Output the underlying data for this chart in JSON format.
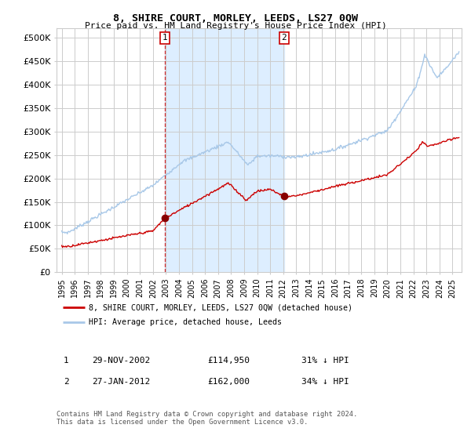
{
  "title": "8, SHIRE COURT, MORLEY, LEEDS, LS27 0QW",
  "subtitle": "Price paid vs. HM Land Registry's House Price Index (HPI)",
  "legend_entry1": "8, SHIRE COURT, MORLEY, LEEDS, LS27 0QW (detached house)",
  "legend_entry2": "HPI: Average price, detached house, Leeds",
  "table_rows": [
    {
      "num": "1",
      "date": "29-NOV-2002",
      "price": "£114,950",
      "hpi": "31% ↓ HPI"
    },
    {
      "num": "2",
      "date": "27-JAN-2012",
      "price": "£162,000",
      "hpi": "34% ↓ HPI"
    }
  ],
  "footnote": "Contains HM Land Registry data © Crown copyright and database right 2024.\nThis data is licensed under the Open Government Licence v3.0.",
  "sale1_year": 2002.91,
  "sale2_year": 2012.07,
  "sale1_price": 114950,
  "sale2_price": 162000,
  "hpi_color": "#a8c8e8",
  "property_color": "#cc0000",
  "dashed_line_color": "#cc0000",
  "shade_color": "#ddeeff",
  "background_color": "#ffffff",
  "grid_color": "#cccccc",
  "ylim": [
    0,
    520000
  ],
  "yticks": [
    0,
    50000,
    100000,
    150000,
    200000,
    250000,
    300000,
    350000,
    400000,
    450000,
    500000
  ],
  "ytick_labels": [
    "£0",
    "£50K",
    "£100K",
    "£150K",
    "£200K",
    "£250K",
    "£300K",
    "£350K",
    "£400K",
    "£450K",
    "£500K"
  ],
  "xlim_start": 1994.6,
  "xlim_end": 2025.7,
  "xtick_years": [
    1995,
    1996,
    1997,
    1998,
    1999,
    2000,
    2001,
    2002,
    2003,
    2004,
    2005,
    2006,
    2007,
    2008,
    2009,
    2010,
    2011,
    2012,
    2013,
    2014,
    2015,
    2016,
    2017,
    2018,
    2019,
    2020,
    2021,
    2022,
    2023,
    2024,
    2025
  ]
}
